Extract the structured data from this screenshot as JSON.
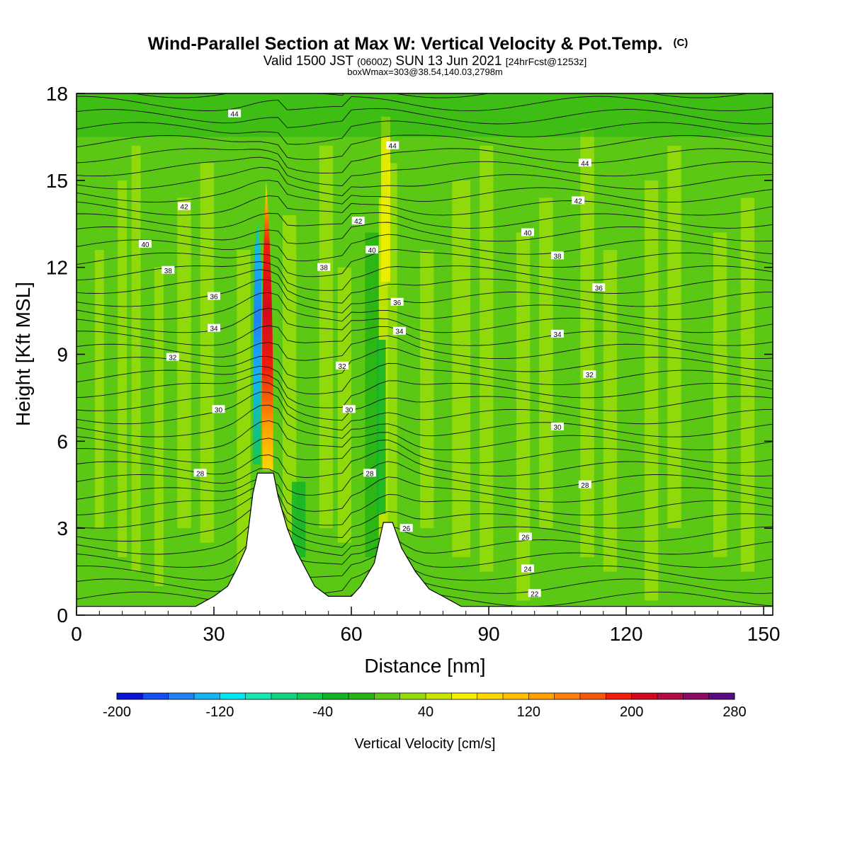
{
  "chart_data": {
    "type": "heatmap",
    "title": "Wind-Parallel Section at Max W: Vertical Velocity & Pot.Temp.",
    "title_mark": "(C)",
    "subtitle": {
      "part1": "Valid 1500 JST",
      "part2": "(0600Z)",
      "part3": "SUN 13 Jun 2021",
      "part4": "[24hrFcst@1253z]"
    },
    "subtitle2": "boxWmax=303@38.54,140.03,2798m",
    "xlabel": "Distance [nm]",
    "ylabel": "Height [Kft MSL]",
    "xlim": [
      0,
      152
    ],
    "ylim": [
      0,
      18
    ],
    "x_ticks": [
      "0",
      "30",
      "60",
      "90",
      "120",
      "150"
    ],
    "y_ticks": [
      "0",
      "3",
      "6",
      "9",
      "12",
      "15",
      "18"
    ],
    "colorbar": {
      "label": "Vertical Velocity [cm/s]",
      "min": -200,
      "max": 280,
      "step": 20,
      "tick_labels": [
        "-200",
        "-120",
        "-40",
        "40",
        "120",
        "200",
        "280"
      ],
      "colors": [
        "#0a14d2",
        "#1450f0",
        "#1e82f5",
        "#14b4f0",
        "#00e6f0",
        "#14e6b4",
        "#14d282",
        "#14c850",
        "#14b428",
        "#28b414",
        "#5ac814",
        "#96dc0a",
        "#c8e600",
        "#f5f000",
        "#ffd700",
        "#ffbe00",
        "#ffa000",
        "#ff7d0a",
        "#f55a0a",
        "#f01e0a",
        "#d20a1e",
        "#b40a46",
        "#8c0a64",
        "#5a0a82"
      ]
    },
    "updraft_max": 303,
    "terrain_kft": [
      {
        "x": 0,
        "h": 0.3
      },
      {
        "x": 26,
        "h": 0.3
      },
      {
        "x": 30,
        "h": 0.65
      },
      {
        "x": 33,
        "h": 1.0
      },
      {
        "x": 35,
        "h": 1.6
      },
      {
        "x": 37,
        "h": 2.3
      },
      {
        "x": 38.5,
        "h": 4.2
      },
      {
        "x": 39.5,
        "h": 4.9
      },
      {
        "x": 43,
        "h": 4.9
      },
      {
        "x": 44,
        "h": 4.1
      },
      {
        "x": 46,
        "h": 3.0
      },
      {
        "x": 48,
        "h": 2.2
      },
      {
        "x": 50,
        "h": 1.6
      },
      {
        "x": 52,
        "h": 1.0
      },
      {
        "x": 55,
        "h": 0.65
      },
      {
        "x": 60,
        "h": 0.65
      },
      {
        "x": 62,
        "h": 1.0
      },
      {
        "x": 65,
        "h": 1.8
      },
      {
        "x": 67,
        "h": 3.2
      },
      {
        "x": 69,
        "h": 3.2
      },
      {
        "x": 71,
        "h": 2.3
      },
      {
        "x": 74,
        "h": 1.5
      },
      {
        "x": 77,
        "h": 0.9
      },
      {
        "x": 80,
        "h": 0.65
      },
      {
        "x": 84,
        "h": 0.3
      },
      {
        "x": 152,
        "h": 0.3
      }
    ],
    "isentrope_labels": [
      {
        "v": "44",
        "x": 34.5,
        "y": 17.3
      },
      {
        "v": "44",
        "x": 69,
        "y": 16.2
      },
      {
        "v": "44",
        "x": 111,
        "y": 15.6
      },
      {
        "v": "42",
        "x": 23.5,
        "y": 14.1
      },
      {
        "v": "42",
        "x": 61.5,
        "y": 13.6
      },
      {
        "v": "42",
        "x": 109.5,
        "y": 14.3
      },
      {
        "v": "40",
        "x": 15,
        "y": 12.8
      },
      {
        "v": "40",
        "x": 64.5,
        "y": 12.6
      },
      {
        "v": "40",
        "x": 98.5,
        "y": 13.2
      },
      {
        "v": "38",
        "x": 20,
        "y": 11.9
      },
      {
        "v": "38",
        "x": 54,
        "y": 12.0
      },
      {
        "v": "38",
        "x": 105,
        "y": 12.4
      },
      {
        "v": "36",
        "x": 30,
        "y": 11.0
      },
      {
        "v": "36",
        "x": 70,
        "y": 10.8
      },
      {
        "v": "36",
        "x": 114,
        "y": 11.3
      },
      {
        "v": "34",
        "x": 30,
        "y": 9.9
      },
      {
        "v": "34",
        "x": 70.5,
        "y": 9.8
      },
      {
        "v": "34",
        "x": 105,
        "y": 9.7
      },
      {
        "v": "32",
        "x": 21,
        "y": 8.9
      },
      {
        "v": "32",
        "x": 58,
        "y": 8.6
      },
      {
        "v": "32",
        "x": 112,
        "y": 8.3
      },
      {
        "v": "30",
        "x": 31,
        "y": 7.1
      },
      {
        "v": "30",
        "x": 59.5,
        "y": 7.1
      },
      {
        "v": "30",
        "x": 105,
        "y": 6.5
      },
      {
        "v": "28",
        "x": 27,
        "y": 4.9
      },
      {
        "v": "28",
        "x": 64,
        "y": 4.9
      },
      {
        "v": "28",
        "x": 111,
        "y": 4.5
      },
      {
        "v": "26",
        "x": 72,
        "y": 3.0
      },
      {
        "v": "26",
        "x": 98,
        "y": 2.7
      },
      {
        "v": "24",
        "x": 98.5,
        "y": 1.6
      },
      {
        "v": "22",
        "x": 100,
        "y": 0.75
      }
    ]
  }
}
